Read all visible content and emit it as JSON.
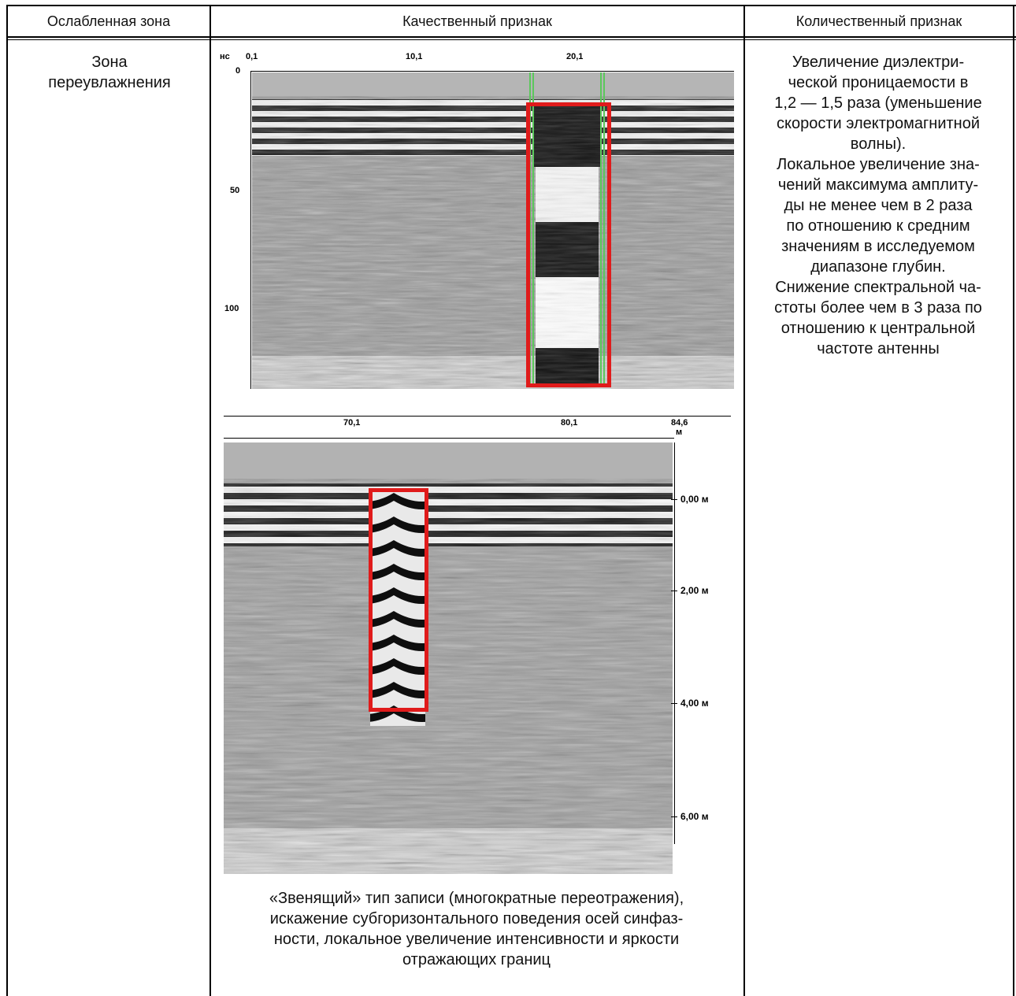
{
  "table": {
    "headers": [
      "Ослабленная зона",
      "Качественный признак",
      "Количественный признак"
    ]
  },
  "zone": {
    "title": "Зона\nпереувлажнения"
  },
  "quantitative": {
    "text": "Увеличение диэлектри-\nческой проницаемости в\n1,2 — 1,5 раза (уменьшение\nскорости электромагнитной\nволны).\nЛокальное увеличение зна-\nчений максимума амплиту-\nды не менее чем в 2 раза\nпо отношению к средним\nзначениям в исследуемом\nдиапазоне глубин.\nСнижение спектральной ча-\nстоты более чем в 3 раза по\nотношению к центральной\nчастоте антенны"
  },
  "qualitative": {
    "caption": "«Звенящий» тип записи (многократные переотражения),\nискажение субгоризонтального поведения осей синфаз-\nности, локальное увеличение интенсивности и яркости\nотражающих границ"
  },
  "radargram1": {
    "unit_y": "нс",
    "x_ticks": [
      "0,1",
      "10,1",
      "20,1"
    ],
    "y_ticks": [
      "0",
      "50",
      "100"
    ]
  },
  "radargram2": {
    "x_ticks": [
      "70,1",
      "80,1",
      "84,6"
    ],
    "x_unit": "м",
    "depth_ticks": [
      "0,00 м",
      "2,00 м",
      "4,00 м",
      "6,00 м"
    ]
  },
  "colors": {
    "highlight": "#e01b1b",
    "marker": "#5cc75c"
  }
}
